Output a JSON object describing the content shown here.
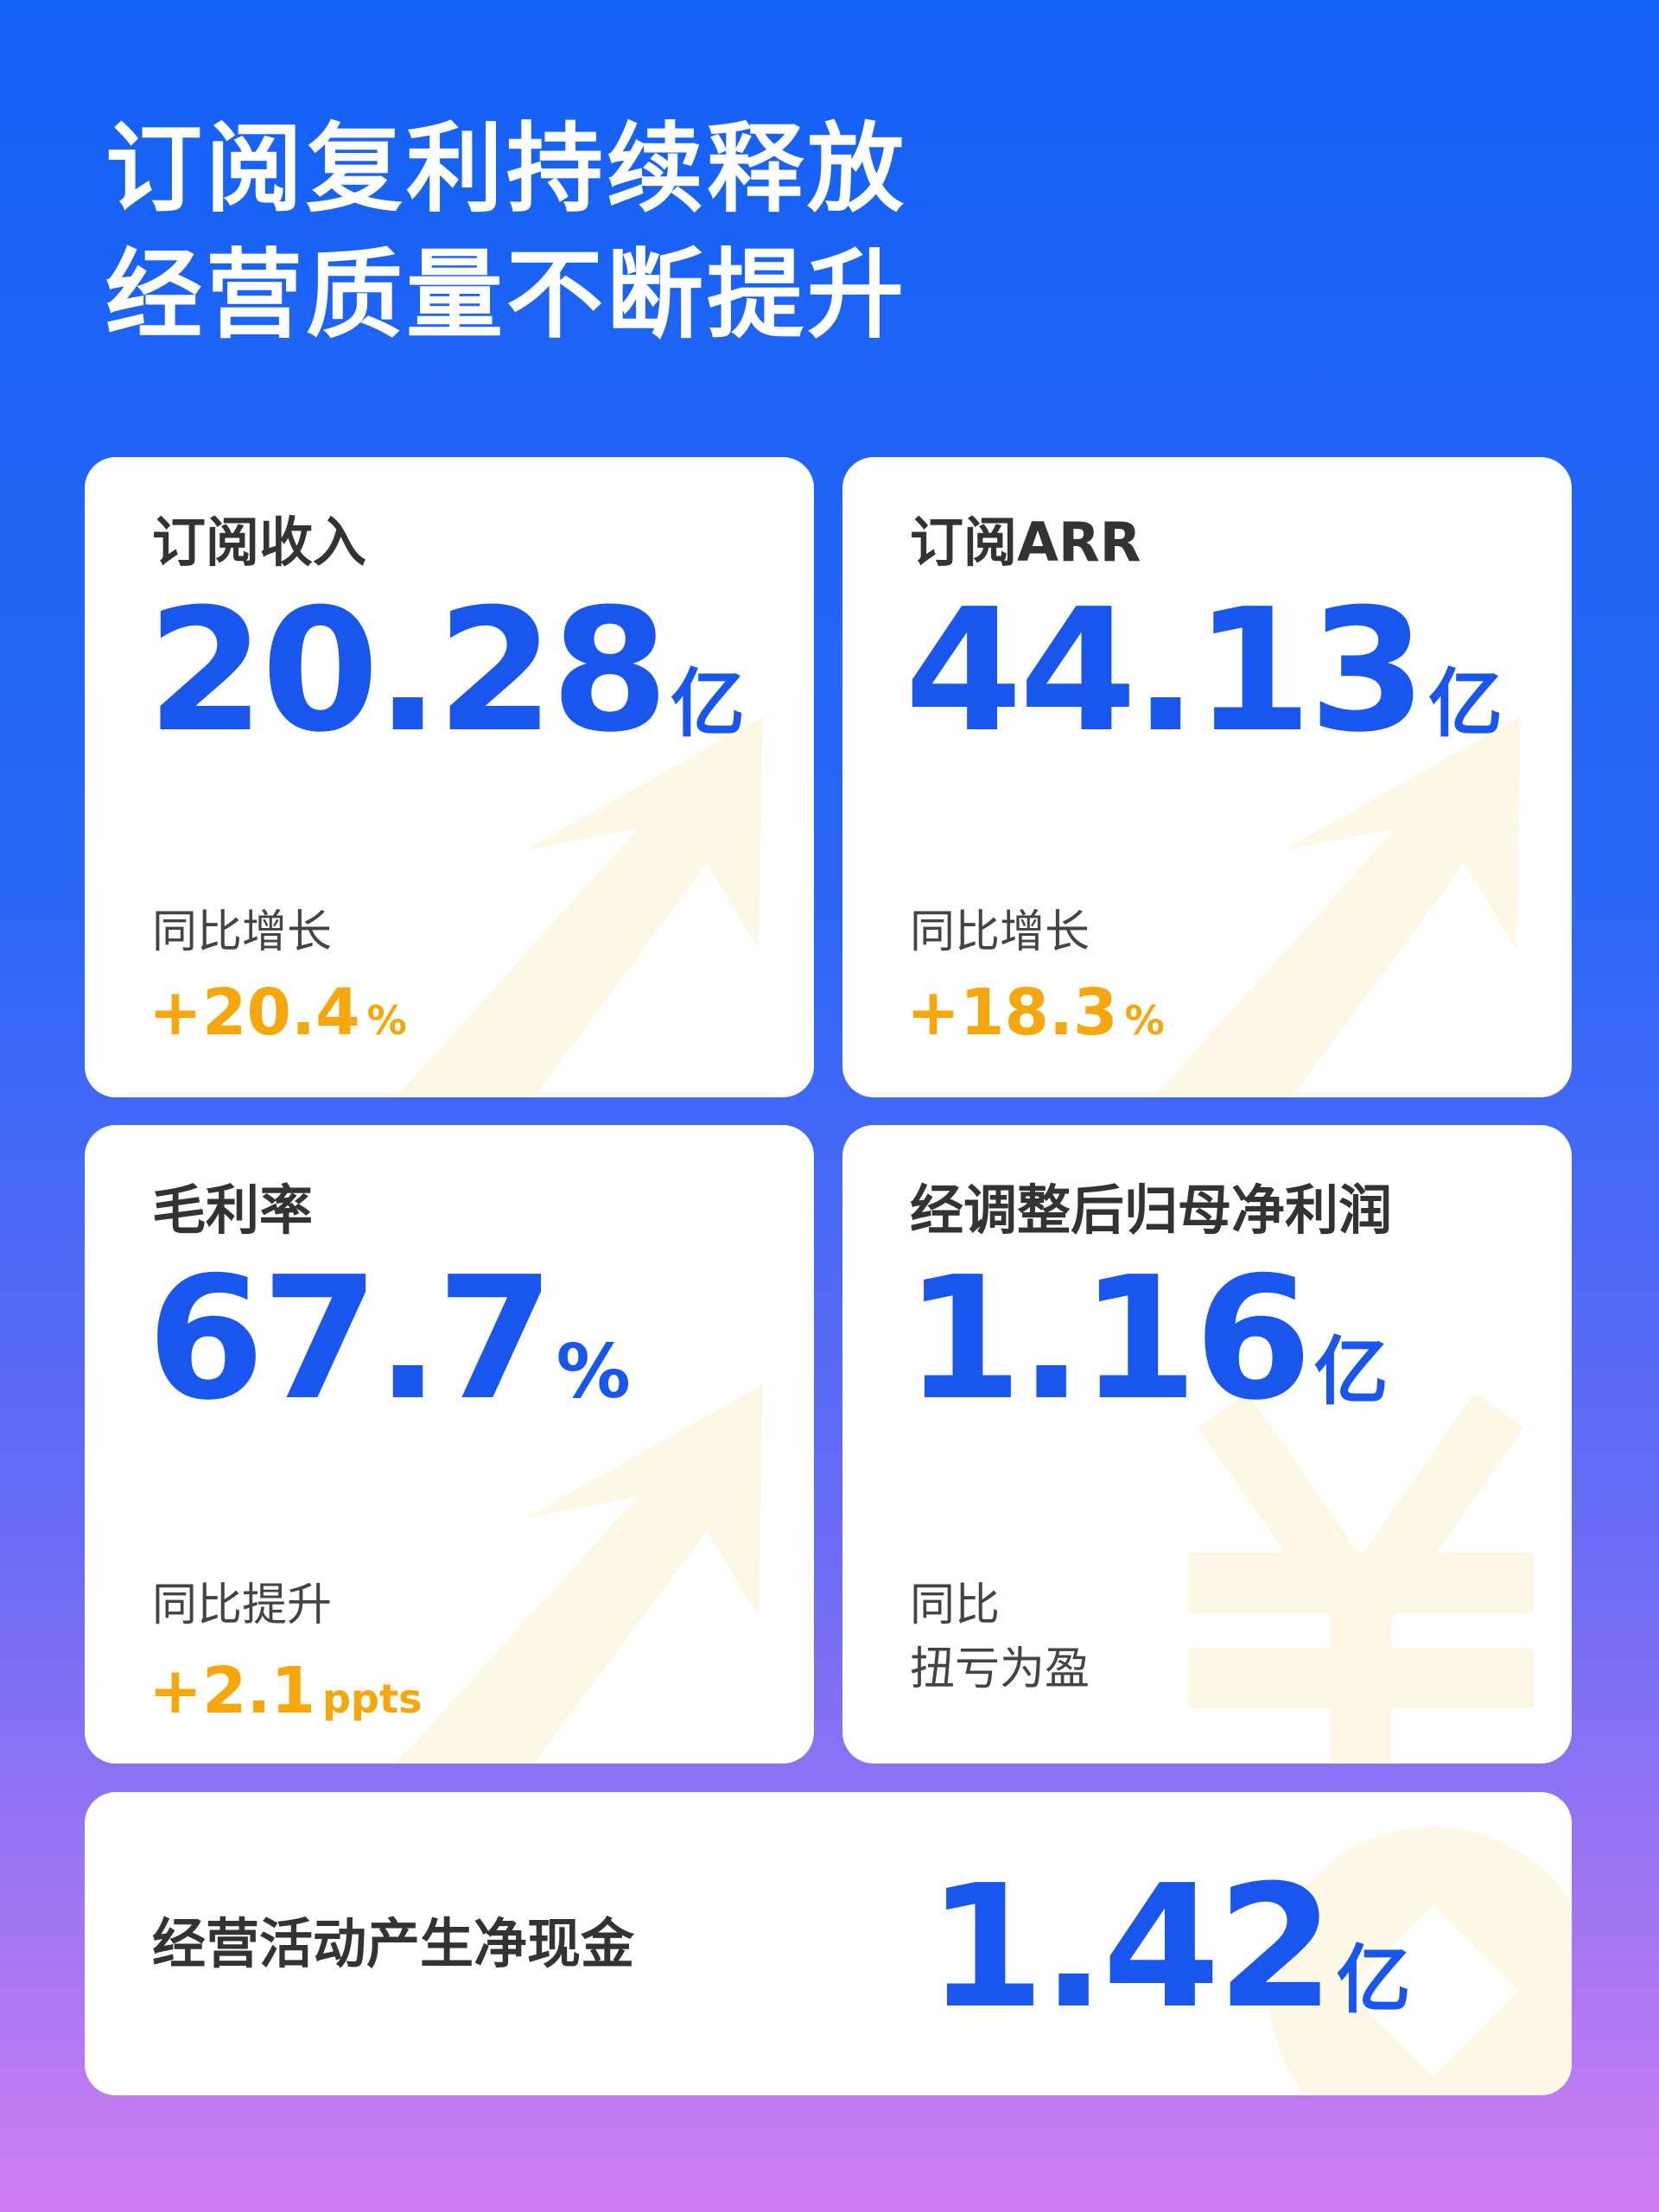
{
  "header": {
    "title_lines": [
      "订阅复利持续释放",
      "经营质量不断提升"
    ]
  },
  "cards": [
    {
      "label": "订阅收入",
      "value": "20.28",
      "unit": "亿",
      "sub_label": "同比增长",
      "change": "+20.4",
      "change_unit": "%"
    },
    {
      "label": "订阅ARR",
      "value": "44.13",
      "unit": "亿",
      "sub_label": "同比增长",
      "change": "+18.3",
      "change_unit": "%"
    },
    {
      "label": "毛利率",
      "value": "67.7",
      "unit": "%",
      "sub_label": "同比提升",
      "change": "+2.1",
      "change_unit": "ppts"
    },
    {
      "label": "经调整后归母净利润",
      "value": "1.16",
      "unit": "亿",
      "sub_lines": [
        "同比",
        "扭亏为盈"
      ]
    },
    {
      "label": "经营活动产生净现金",
      "value": "1.42",
      "unit": "亿"
    }
  ]
}
